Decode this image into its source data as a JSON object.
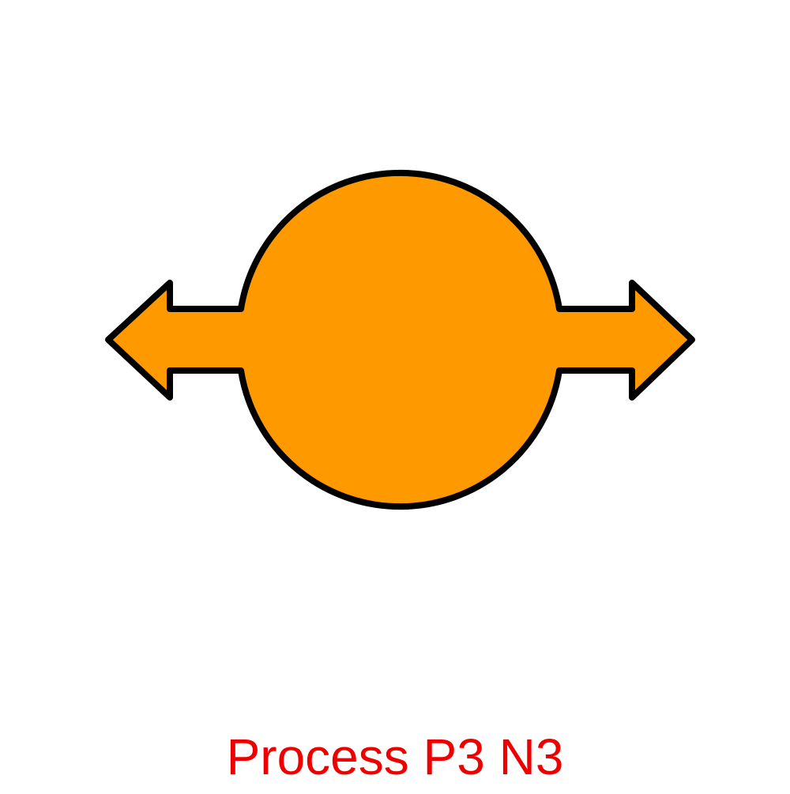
{
  "symbol": {
    "icon": "circle-double-arrow-icon",
    "fill_color": "#ff9900",
    "stroke_color": "#000000"
  },
  "caption": {
    "text": "Process P3 N3",
    "color": "#ee0000"
  }
}
